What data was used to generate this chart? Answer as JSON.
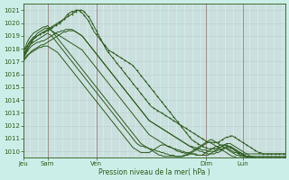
{
  "xlabel": "Pression niveau de la mer( hPa )",
  "background_color": "#cceee8",
  "grid_color": "#c8a8b8",
  "grid_color_h": "#b8d8d0",
  "line_color": "#2d5a1b",
  "ylim": [
    1009.5,
    1021.5
  ],
  "yticks": [
    1010,
    1011,
    1012,
    1013,
    1014,
    1015,
    1016,
    1017,
    1018,
    1019,
    1020,
    1021
  ],
  "total_steps": 130,
  "figsize": [
    3.2,
    2.0
  ],
  "dpi": 100,
  "day_labels": [
    [
      "Jeu",
      0
    ],
    [
      "Sam",
      12
    ],
    [
      "Ven",
      36
    ],
    [
      "Dim",
      90
    ],
    [
      "Lun",
      108
    ]
  ],
  "day_vlines": [
    12,
    36,
    90,
    108
  ],
  "series": [
    {
      "values": [
        1017.2,
        1017.3,
        1017.5,
        1017.6,
        1017.7,
        1017.8,
        1017.9,
        1018.0,
        1018.1,
        1018.1,
        1018.2,
        1018.2,
        1018.2,
        1018.1,
        1018.0,
        1017.9,
        1017.8,
        1017.7,
        1017.5,
        1017.3,
        1017.1,
        1016.9,
        1016.7,
        1016.5,
        1016.3,
        1016.1,
        1015.9,
        1015.7,
        1015.5,
        1015.3,
        1015.1,
        1014.9,
        1014.7,
        1014.5,
        1014.3,
        1014.1,
        1013.9,
        1013.7,
        1013.5,
        1013.3,
        1013.1,
        1012.9,
        1012.7,
        1012.5,
        1012.3,
        1012.1,
        1011.9,
        1011.7,
        1011.5,
        1011.3,
        1011.1,
        1010.9,
        1010.7,
        1010.5,
        1010.3,
        1010.2,
        1010.1,
        1010.0,
        1009.9,
        1009.9,
        1009.9,
        1009.9,
        1009.9,
        1010.0,
        1010.1,
        1010.2,
        1010.3,
        1010.4,
        1010.5,
        1010.5,
        1010.5,
        1010.4,
        1010.4,
        1010.3,
        1010.2,
        1010.1,
        1010.0,
        1010.0,
        1009.9,
        1009.9,
        1009.8,
        1009.8,
        1009.8,
        1009.8,
        1009.8,
        1009.7,
        1009.7,
        1009.7,
        1009.7,
        1009.8,
        1009.9,
        1010.0,
        1010.1,
        1010.2,
        1010.3,
        1010.4,
        1010.4,
        1010.5,
        1010.5,
        1010.5,
        1010.4,
        1010.4,
        1010.3,
        1010.2,
        1010.1,
        1010.0,
        1009.9,
        1009.9,
        1009.8,
        1009.8,
        1009.8,
        1009.8,
        1009.8,
        1009.8,
        1009.8,
        1009.8,
        1009.8,
        1009.8,
        1009.8,
        1009.8,
        1009.8,
        1009.8,
        1009.8,
        1009.8,
        1009.8,
        1009.8,
        1009.8,
        1009.8,
        1009.8,
        1009.8
      ],
      "marker": false
    },
    {
      "values": [
        1017.5,
        1017.7,
        1018.0,
        1018.2,
        1018.4,
        1018.5,
        1018.6,
        1018.7,
        1018.8,
        1018.9,
        1019.0,
        1019.1,
        1019.2,
        1019.1,
        1019.0,
        1018.8,
        1018.6,
        1018.4,
        1018.2,
        1018.0,
        1017.8,
        1017.6,
        1017.4,
        1017.2,
        1017.0,
        1016.8,
        1016.6,
        1016.4,
        1016.2,
        1016.0,
        1015.8,
        1015.6,
        1015.4,
        1015.2,
        1015.0,
        1014.8,
        1014.6,
        1014.4,
        1014.2,
        1014.0,
        1013.8,
        1013.6,
        1013.4,
        1013.2,
        1013.0,
        1012.8,
        1012.6,
        1012.4,
        1012.2,
        1012.0,
        1011.8,
        1011.6,
        1011.4,
        1011.2,
        1011.0,
        1010.8,
        1010.6,
        1010.5,
        1010.4,
        1010.4,
        1010.3,
        1010.3,
        1010.2,
        1010.2,
        1010.1,
        1010.1,
        1010.0,
        1010.0,
        1009.9,
        1009.9,
        1009.8,
        1009.8,
        1009.7,
        1009.7,
        1009.7,
        1009.6,
        1009.6,
        1009.6,
        1009.6,
        1009.6,
        1009.7,
        1009.7,
        1009.8,
        1009.9,
        1010.0,
        1010.1,
        1010.2,
        1010.3,
        1010.4,
        1010.5,
        1010.6,
        1010.7,
        1010.7,
        1010.6,
        1010.5,
        1010.4,
        1010.3,
        1010.2,
        1010.1,
        1010.0,
        1009.9,
        1009.8,
        1009.7,
        1009.6,
        1009.6,
        1009.5,
        1009.5,
        1009.5,
        1009.5,
        1009.5,
        1009.5,
        1009.5,
        1009.5,
        1009.5,
        1009.5,
        1009.5,
        1009.5,
        1009.5,
        1009.5,
        1009.5,
        1009.5,
        1009.5,
        1009.5,
        1009.5,
        1009.5,
        1009.5,
        1009.5,
        1009.5,
        1009.5,
        1009.5
      ],
      "marker": false
    },
    {
      "values": [
        1017.8,
        1018.1,
        1018.5,
        1018.8,
        1019.0,
        1019.2,
        1019.3,
        1019.4,
        1019.5,
        1019.6,
        1019.7,
        1019.7,
        1019.8,
        1019.6,
        1019.4,
        1019.2,
        1019.0,
        1018.8,
        1018.6,
        1018.4,
        1018.2,
        1018.0,
        1017.8,
        1017.6,
        1017.4,
        1017.2,
        1017.0,
        1016.8,
        1016.6,
        1016.4,
        1016.2,
        1016.0,
        1015.8,
        1015.6,
        1015.4,
        1015.2,
        1015.0,
        1014.8,
        1014.6,
        1014.4,
        1014.2,
        1014.0,
        1013.8,
        1013.6,
        1013.4,
        1013.2,
        1013.0,
        1012.8,
        1012.6,
        1012.4,
        1012.2,
        1012.0,
        1011.8,
        1011.6,
        1011.4,
        1011.2,
        1011.0,
        1010.8,
        1010.6,
        1010.5,
        1010.4,
        1010.3,
        1010.2,
        1010.1,
        1010.0,
        1009.9,
        1009.8,
        1009.7,
        1009.7,
        1009.6,
        1009.6,
        1009.6,
        1009.6,
        1009.6,
        1009.6,
        1009.6,
        1009.6,
        1009.6,
        1009.6,
        1009.7,
        1009.7,
        1009.8,
        1009.9,
        1010.0,
        1010.1,
        1010.2,
        1010.3,
        1010.4,
        1010.5,
        1010.6,
        1010.7,
        1010.8,
        1010.9,
        1010.9,
        1010.8,
        1010.7,
        1010.6,
        1010.5,
        1010.4,
        1010.3,
        1010.2,
        1010.1,
        1010.0,
        1009.9,
        1009.8,
        1009.7,
        1009.7,
        1009.6,
        1009.6,
        1009.6,
        1009.6,
        1009.6,
        1009.6,
        1009.6,
        1009.6,
        1009.6,
        1009.6,
        1009.6,
        1009.6,
        1009.6,
        1009.6,
        1009.6,
        1009.6,
        1009.6,
        1009.6,
        1009.6,
        1009.6,
        1009.6,
        1009.6,
        1009.6
      ],
      "marker": false
    },
    {
      "values": [
        1017.3,
        1017.6,
        1017.9,
        1018.2,
        1018.5,
        1018.7,
        1018.9,
        1019.0,
        1019.1,
        1019.2,
        1019.3,
        1019.3,
        1019.4,
        1019.5,
        1019.6,
        1019.7,
        1019.8,
        1019.9,
        1020.0,
        1020.1,
        1020.3,
        1020.5,
        1020.7,
        1020.8,
        1020.9,
        1020.9,
        1021.0,
        1021.0,
        1020.9,
        1020.8,
        1020.6,
        1020.4,
        1020.2,
        1019.9,
        1019.6,
        1019.3,
        1019.1,
        1018.9,
        1018.7,
        1018.5,
        1018.3,
        1018.1,
        1017.9,
        1017.8,
        1017.7,
        1017.6,
        1017.5,
        1017.4,
        1017.3,
        1017.2,
        1017.1,
        1017.0,
        1016.9,
        1016.8,
        1016.7,
        1016.5,
        1016.3,
        1016.1,
        1015.9,
        1015.7,
        1015.5,
        1015.3,
        1015.1,
        1014.9,
        1014.7,
        1014.5,
        1014.3,
        1014.1,
        1013.9,
        1013.7,
        1013.5,
        1013.3,
        1013.1,
        1012.9,
        1012.7,
        1012.5,
        1012.3,
        1012.1,
        1011.9,
        1011.7,
        1011.5,
        1011.3,
        1011.1,
        1010.9,
        1010.8,
        1010.7,
        1010.6,
        1010.5,
        1010.4,
        1010.3,
        1010.3,
        1010.2,
        1010.2,
        1010.2,
        1010.2,
        1010.2,
        1010.3,
        1010.3,
        1010.4,
        1010.5,
        1010.5,
        1010.4,
        1010.3,
        1010.2,
        1010.1,
        1010.0,
        1009.9,
        1009.8,
        1009.7,
        1009.7,
        1009.6,
        1009.6,
        1009.5,
        1009.5,
        1009.5,
        1009.5,
        1009.5,
        1009.5,
        1009.5,
        1009.5,
        1009.5,
        1009.5,
        1009.5,
        1009.5,
        1009.5,
        1009.5,
        1009.5,
        1009.5,
        1009.5,
        1009.5
      ],
      "marker": true
    },
    {
      "values": [
        1017.8,
        1018.0,
        1018.2,
        1018.4,
        1018.6,
        1018.8,
        1018.9,
        1019.0,
        1019.1,
        1019.2,
        1019.3,
        1019.4,
        1019.5,
        1019.6,
        1019.7,
        1019.8,
        1019.9,
        1020.0,
        1020.1,
        1020.2,
        1020.3,
        1020.4,
        1020.5,
        1020.6,
        1020.7,
        1020.8,
        1020.9,
        1021.0,
        1021.0,
        1021.0,
        1020.9,
        1020.7,
        1020.5,
        1020.3,
        1020.0,
        1019.7,
        1019.4,
        1019.1,
        1018.8,
        1018.5,
        1018.2,
        1017.9,
        1017.7,
        1017.5,
        1017.3,
        1017.1,
        1016.9,
        1016.7,
        1016.5,
        1016.3,
        1016.1,
        1015.9,
        1015.7,
        1015.5,
        1015.3,
        1015.1,
        1014.9,
        1014.7,
        1014.5,
        1014.3,
        1014.1,
        1013.9,
        1013.7,
        1013.5,
        1013.4,
        1013.3,
        1013.2,
        1013.1,
        1013.0,
        1012.9,
        1012.8,
        1012.7,
        1012.6,
        1012.5,
        1012.4,
        1012.3,
        1012.2,
        1012.1,
        1012.0,
        1011.9,
        1011.8,
        1011.7,
        1011.6,
        1011.5,
        1011.4,
        1011.3,
        1011.2,
        1011.1,
        1011.0,
        1010.9,
        1010.8,
        1010.7,
        1010.7,
        1010.7,
        1010.7,
        1010.7,
        1010.7,
        1010.8,
        1010.9,
        1011.0,
        1011.1,
        1011.1,
        1011.2,
        1011.2,
        1011.1,
        1011.0,
        1010.9,
        1010.8,
        1010.7,
        1010.6,
        1010.5,
        1010.4,
        1010.3,
        1010.2,
        1010.1,
        1010.0,
        1009.9,
        1009.9,
        1009.8,
        1009.8,
        1009.8,
        1009.8,
        1009.8,
        1009.8,
        1009.8,
        1009.8,
        1009.8,
        1009.8,
        1009.8,
        1009.8
      ],
      "marker": true
    },
    {
      "values": [
        1017.5,
        1017.8,
        1018.2,
        1018.5,
        1018.7,
        1018.9,
        1019.0,
        1019.2,
        1019.3,
        1019.4,
        1019.5,
        1019.6,
        1019.6,
        1019.5,
        1019.4,
        1019.3,
        1019.2,
        1019.1,
        1019.0,
        1018.9,
        1018.8,
        1018.7,
        1018.6,
        1018.5,
        1018.4,
        1018.3,
        1018.2,
        1018.1,
        1018.0,
        1017.9,
        1017.7,
        1017.5,
        1017.3,
        1017.1,
        1016.9,
        1016.7,
        1016.5,
        1016.3,
        1016.1,
        1015.9,
        1015.7,
        1015.5,
        1015.3,
        1015.1,
        1014.9,
        1014.7,
        1014.5,
        1014.3,
        1014.1,
        1013.9,
        1013.7,
        1013.5,
        1013.3,
        1013.1,
        1012.9,
        1012.7,
        1012.5,
        1012.3,
        1012.1,
        1011.9,
        1011.7,
        1011.5,
        1011.3,
        1011.2,
        1011.1,
        1011.0,
        1010.9,
        1010.8,
        1010.7,
        1010.6,
        1010.5,
        1010.4,
        1010.3,
        1010.3,
        1010.2,
        1010.2,
        1010.1,
        1010.1,
        1010.0,
        1010.0,
        1009.9,
        1009.9,
        1009.9,
        1009.8,
        1009.8,
        1009.8,
        1009.7,
        1009.7,
        1009.7,
        1009.7,
        1009.7,
        1009.7,
        1009.8,
        1009.9,
        1010.0,
        1010.1,
        1010.2,
        1010.3,
        1010.4,
        1010.5,
        1010.6,
        1010.6,
        1010.6,
        1010.5,
        1010.4,
        1010.3,
        1010.2,
        1010.1,
        1010.0,
        1009.9,
        1009.8,
        1009.7,
        1009.6,
        1009.6,
        1009.5,
        1009.5,
        1009.5,
        1009.5,
        1009.5,
        1009.5,
        1009.5,
        1009.5,
        1009.5,
        1009.5,
        1009.5,
        1009.5,
        1009.5,
        1009.5,
        1009.5,
        1009.5
      ],
      "marker": false
    },
    {
      "values": [
        1017.2,
        1017.5,
        1017.8,
        1018.0,
        1018.2,
        1018.3,
        1018.4,
        1018.5,
        1018.5,
        1018.6,
        1018.6,
        1018.7,
        1018.8,
        1018.9,
        1019.0,
        1019.1,
        1019.2,
        1019.3,
        1019.3,
        1019.4,
        1019.4,
        1019.5,
        1019.5,
        1019.5,
        1019.5,
        1019.4,
        1019.3,
        1019.2,
        1019.1,
        1019.0,
        1018.8,
        1018.6,
        1018.4,
        1018.2,
        1018.0,
        1017.8,
        1017.6,
        1017.4,
        1017.2,
        1017.0,
        1016.8,
        1016.6,
        1016.4,
        1016.2,
        1016.0,
        1015.8,
        1015.6,
        1015.4,
        1015.2,
        1015.0,
        1014.8,
        1014.6,
        1014.4,
        1014.2,
        1014.0,
        1013.8,
        1013.6,
        1013.4,
        1013.2,
        1013.0,
        1012.8,
        1012.6,
        1012.4,
        1012.3,
        1012.2,
        1012.1,
        1012.0,
        1011.9,
        1011.8,
        1011.7,
        1011.6,
        1011.5,
        1011.4,
        1011.3,
        1011.2,
        1011.1,
        1011.0,
        1010.9,
        1010.8,
        1010.7,
        1010.6,
        1010.5,
        1010.4,
        1010.4,
        1010.3,
        1010.3,
        1010.2,
        1010.2,
        1010.1,
        1010.1,
        1010.1,
        1010.0,
        1010.0,
        1010.0,
        1010.0,
        1010.0,
        1010.1,
        1010.1,
        1010.2,
        1010.3,
        1010.3,
        1010.2,
        1010.1,
        1010.0,
        1009.9,
        1009.9,
        1009.8,
        1009.7,
        1009.7,
        1009.6,
        1009.6,
        1009.5,
        1009.5,
        1009.5,
        1009.5,
        1009.5,
        1009.5,
        1009.5,
        1009.5,
        1009.5,
        1009.5,
        1009.5,
        1009.5,
        1009.5,
        1009.5,
        1009.5,
        1009.5,
        1009.5,
        1009.5,
        1009.5
      ],
      "marker": false
    },
    {
      "values": [
        1017.0,
        1017.2,
        1017.4,
        1017.6,
        1017.8,
        1017.9,
        1018.0,
        1018.1,
        1018.2,
        1018.3,
        1018.3,
        1018.4,
        1018.5,
        1018.6,
        1018.7,
        1018.8,
        1018.9,
        1019.0,
        1019.1,
        1019.2,
        1019.3,
        1019.3,
        1019.4,
        1019.4,
        1019.4,
        1019.4,
        1019.3,
        1019.2,
        1019.1,
        1019.0,
        1018.8,
        1018.6,
        1018.4,
        1018.2,
        1018.0,
        1017.8,
        1017.6,
        1017.4,
        1017.2,
        1017.0,
        1016.8,
        1016.6,
        1016.4,
        1016.2,
        1016.0,
        1015.8,
        1015.6,
        1015.4,
        1015.2,
        1015.0,
        1014.8,
        1014.6,
        1014.4,
        1014.2,
        1014.0,
        1013.8,
        1013.6,
        1013.4,
        1013.2,
        1013.0,
        1012.8,
        1012.6,
        1012.4,
        1012.3,
        1012.2,
        1012.1,
        1012.0,
        1011.9,
        1011.8,
        1011.7,
        1011.6,
        1011.5,
        1011.4,
        1011.3,
        1011.2,
        1011.1,
        1011.0,
        1010.9,
        1010.8,
        1010.7,
        1010.6,
        1010.5,
        1010.4,
        1010.3,
        1010.2,
        1010.1,
        1010.1,
        1010.0,
        1010.0,
        1009.9,
        1009.9,
        1009.8,
        1009.8,
        1009.8,
        1009.8,
        1009.9,
        1009.9,
        1010.0,
        1010.1,
        1010.2,
        1010.3,
        1010.3,
        1010.4,
        1010.3,
        1010.2,
        1010.1,
        1010.0,
        1009.9,
        1009.8,
        1009.7,
        1009.6,
        1009.5,
        1009.4,
        1009.4,
        1009.4,
        1009.3,
        1009.3,
        1009.3,
        1009.3,
        1009.3,
        1009.3,
        1009.3,
        1009.3,
        1009.3,
        1009.3,
        1009.3,
        1009.3,
        1009.3,
        1009.3,
        1009.3
      ],
      "marker": false
    }
  ]
}
